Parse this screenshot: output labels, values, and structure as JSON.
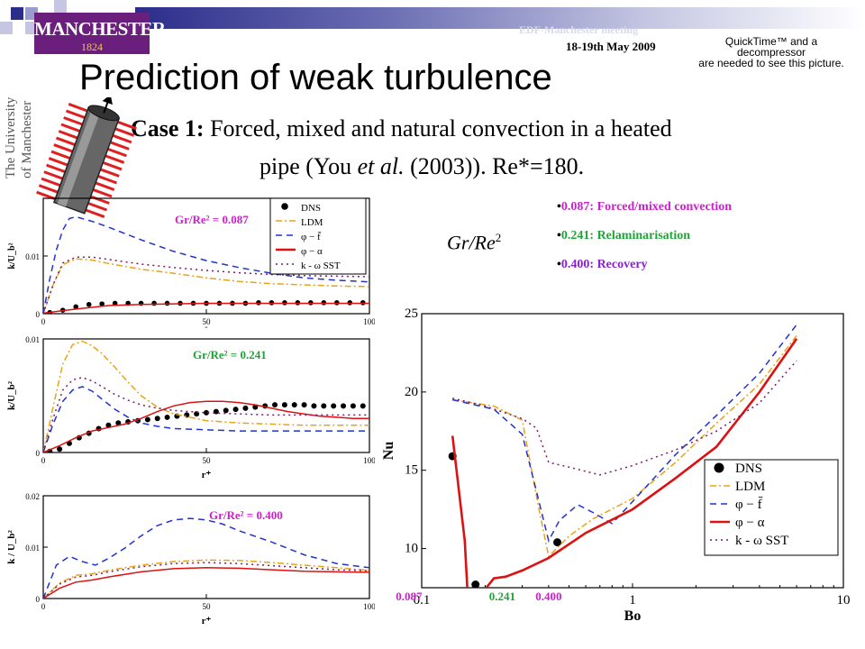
{
  "header": {
    "logo_text": "MANCHESTER",
    "logo_year": "1824",
    "meeting": "EDF-Manchester meeting",
    "date": "18-19th May 2009",
    "quicktime_lines": [
      "QuickTime™ and a",
      "decompressor",
      "are needed to see this picture."
    ],
    "vertical_logo": [
      "The University",
      "of Manchester"
    ]
  },
  "slide": {
    "title": "Prediction of weak turbulence",
    "case_label": "Case 1:",
    "case_text": "Forced, mixed and natural convection in a heated",
    "case_text2_a": "pipe (You",
    "case_text2_b": "et al.",
    "case_text2_c": "(2003)). Re*=180.",
    "formula": "Gr/Re",
    "formula_sup": "2"
  },
  "bullets": [
    {
      "text": "0.087: Forced/mixed convection",
      "color": "#cc22cc"
    },
    {
      "text": "0.241: Relaminarisation",
      "color": "#22a33a"
    },
    {
      "text": "0.400: Recovery",
      "color": "#8a22cc"
    }
  ],
  "colors": {
    "dns": "#000000",
    "ldm": "#e8a317",
    "phi_f": "#2233cc",
    "phi_alpha": "#dd1111",
    "komega": "#7a1a6a"
  },
  "chart_data": [
    {
      "type": "line",
      "panel": "top-left",
      "annotation": "Gr/Re² = 0.087",
      "annotation_color": "#cc22cc",
      "ylabel": "k/U_b²",
      "xlabel": "+",
      "xlim": [
        0,
        100
      ],
      "ylim": [
        0,
        0.02
      ],
      "xticks": [
        "0",
        "50",
        "100"
      ],
      "yticks": [
        "0",
        "0.01"
      ],
      "legend": [
        "DNS",
        "LDM",
        "φ − f̄",
        "φ − α",
        "k - ω SST"
      ],
      "series": [
        {
          "name": "DNS",
          "style": "points",
          "x": [
            2,
            6,
            10,
            14,
            18,
            22,
            26,
            30,
            34,
            38,
            42,
            46,
            50,
            54,
            58,
            62,
            66,
            70,
            74,
            78,
            82,
            86,
            90,
            94,
            98
          ],
          "y": [
            0.0002,
            0.0006,
            0.0012,
            0.0016,
            0.0017,
            0.0018,
            0.0018,
            0.0018,
            0.0018,
            0.0018,
            0.0018,
            0.0018,
            0.0018,
            0.0018,
            0.0018,
            0.0018,
            0.0019,
            0.0019,
            0.0019,
            0.0019,
            0.0019,
            0.0019,
            0.0019,
            0.0019,
            0.0019
          ]
        },
        {
          "name": "LDM",
          "x": [
            0,
            3,
            6,
            10,
            15,
            20,
            30,
            40,
            50,
            60,
            70,
            80,
            90,
            100
          ],
          "y": [
            0,
            0.005,
            0.0085,
            0.0095,
            0.0093,
            0.0087,
            0.0077,
            0.007,
            0.0062,
            0.0056,
            0.0052,
            0.005,
            0.0048,
            0.0047
          ]
        },
        {
          "name": "φ − f̄",
          "x": [
            0,
            2,
            4,
            6,
            8,
            10,
            15,
            20,
            30,
            40,
            50,
            60,
            70,
            80,
            90,
            100
          ],
          "y": [
            0,
            0.006,
            0.011,
            0.0145,
            0.0165,
            0.0168,
            0.016,
            0.015,
            0.0128,
            0.0108,
            0.0092,
            0.008,
            0.007,
            0.0062,
            0.0058,
            0.0055
          ]
        },
        {
          "name": "φ − α",
          "x": [
            0,
            10,
            20,
            30,
            40,
            50,
            60,
            70,
            80,
            90,
            100
          ],
          "y": [
            0.0001,
            0.0008,
            0.0014,
            0.0016,
            0.0017,
            0.0018,
            0.0018,
            0.0018,
            0.0018,
            0.0018,
            0.0018
          ]
        },
        {
          "name": "k - ω SST",
          "x": [
            0,
            3,
            6,
            10,
            15,
            20,
            30,
            40,
            50,
            60,
            70,
            80,
            90,
            100
          ],
          "y": [
            0,
            0.005,
            0.0088,
            0.0098,
            0.0098,
            0.0094,
            0.0086,
            0.008,
            0.0075,
            0.0071,
            0.0068,
            0.0066,
            0.0065,
            0.0064
          ]
        }
      ]
    },
    {
      "type": "line",
      "panel": "middle-left",
      "annotation": "Gr/Re² = 0.241",
      "annotation_color": "#22a33a",
      "ylabel": "k/U_b²",
      "xlabel": "r⁺",
      "xlim": [
        0,
        100
      ],
      "ylim": [
        0,
        0.01
      ],
      "xticks": [
        "0",
        "50",
        "100"
      ],
      "yticks": [
        "0",
        "0.01"
      ],
      "series": [
        {
          "name": "DNS",
          "style": "points",
          "x": [
            2,
            5,
            8,
            11,
            14,
            17,
            20,
            23,
            26,
            29,
            32,
            35,
            38,
            41,
            44,
            47,
            50,
            53,
            56,
            59,
            62,
            65,
            68,
            71,
            74,
            77,
            80,
            83,
            86,
            89,
            92,
            95,
            98
          ],
          "y": [
            0.0001,
            0.0003,
            0.0008,
            0.0013,
            0.0017,
            0.0021,
            0.0024,
            0.0026,
            0.0027,
            0.0028,
            0.0029,
            0.003,
            0.0031,
            0.0032,
            0.0033,
            0.0034,
            0.0035,
            0.0036,
            0.0037,
            0.0038,
            0.0039,
            0.004,
            0.0041,
            0.0042,
            0.0042,
            0.0042,
            0.0042,
            0.0041,
            0.0041,
            0.0041,
            0.0041,
            0.0041,
            0.0041
          ]
        },
        {
          "name": "LDM",
          "x": [
            0,
            3,
            6,
            9,
            12,
            15,
            18,
            22,
            26,
            30,
            35,
            40,
            50,
            60,
            70,
            80,
            90,
            100
          ],
          "y": [
            0,
            0.004,
            0.0078,
            0.0095,
            0.0098,
            0.0094,
            0.0087,
            0.0075,
            0.0062,
            0.005,
            0.004,
            0.0034,
            0.0028,
            0.0026,
            0.0025,
            0.0024,
            0.0024,
            0.0024
          ]
        },
        {
          "name": "φ − f̄",
          "x": [
            0,
            3,
            6,
            9,
            12,
            15,
            18,
            22,
            26,
            30,
            35,
            40,
            50,
            60,
            70,
            80,
            90,
            100
          ],
          "y": [
            0,
            0.0025,
            0.0045,
            0.0055,
            0.0058,
            0.0054,
            0.0047,
            0.0038,
            0.0031,
            0.0026,
            0.0023,
            0.0021,
            0.002,
            0.0019,
            0.0019,
            0.0019,
            0.0019,
            0.0019
          ]
        },
        {
          "name": "φ − α",
          "x": [
            0,
            5,
            10,
            15,
            20,
            25,
            30,
            35,
            40,
            45,
            50,
            55,
            60,
            65,
            70,
            75,
            80,
            85,
            90,
            95,
            100
          ],
          "y": [
            0,
            0.0006,
            0.0013,
            0.0019,
            0.0022,
            0.0025,
            0.003,
            0.0036,
            0.0041,
            0.0044,
            0.0045,
            0.0045,
            0.0044,
            0.0042,
            0.0039,
            0.0036,
            0.0034,
            0.0032,
            0.0031,
            0.003,
            0.003
          ]
        },
        {
          "name": "k - ω SST",
          "x": [
            0,
            3,
            6,
            9,
            12,
            15,
            18,
            22,
            26,
            30,
            35,
            40,
            50,
            60,
            70,
            80,
            90,
            100
          ],
          "y": [
            0,
            0.003,
            0.0055,
            0.0064,
            0.0066,
            0.0063,
            0.0058,
            0.0051,
            0.0046,
            0.0042,
            0.0039,
            0.0037,
            0.0035,
            0.0034,
            0.0033,
            0.0033,
            0.0033,
            0.0033
          ]
        }
      ]
    },
    {
      "type": "line",
      "panel": "bottom-left",
      "annotation": "Gr/Re² = 0.400",
      "annotation_color": "#cc22cc",
      "ylabel": "k / U_b²",
      "xlabel": "r⁺",
      "xlim": [
        0,
        100
      ],
      "ylim": [
        0,
        0.02
      ],
      "xticks": [
        "0",
        "50",
        "100"
      ],
      "yticks": [
        "0",
        "0.01",
        "0.02"
      ],
      "series": [
        {
          "name": "LDM",
          "x": [
            0,
            5,
            10,
            15,
            20,
            30,
            40,
            50,
            60,
            70,
            80,
            90,
            100
          ],
          "y": [
            0,
            0.003,
            0.0045,
            0.0048,
            0.0055,
            0.0065,
            0.0072,
            0.0075,
            0.0074,
            0.007,
            0.0065,
            0.006,
            0.0055
          ]
        },
        {
          "name": "φ − f̄",
          "x": [
            0,
            4,
            8,
            12,
            16,
            20,
            25,
            30,
            35,
            40,
            45,
            50,
            55,
            60,
            70,
            80,
            90,
            100
          ],
          "y": [
            0,
            0.0065,
            0.0082,
            0.0072,
            0.0065,
            0.0078,
            0.0098,
            0.0122,
            0.0142,
            0.0153,
            0.0156,
            0.0153,
            0.0145,
            0.0132,
            0.011,
            0.0085,
            0.0068,
            0.006
          ]
        },
        {
          "name": "φ − α",
          "x": [
            0,
            5,
            10,
            15,
            20,
            30,
            40,
            50,
            60,
            70,
            80,
            90,
            100
          ],
          "y": [
            0,
            0.002,
            0.0032,
            0.0036,
            0.0042,
            0.0052,
            0.0058,
            0.006,
            0.0059,
            0.0056,
            0.0053,
            0.0052,
            0.0051
          ]
        },
        {
          "name": "k - ω SST",
          "x": [
            0,
            5,
            10,
            15,
            20,
            30,
            40,
            50,
            60,
            70,
            80,
            90,
            100
          ],
          "y": [
            0,
            0.0028,
            0.0042,
            0.0045,
            0.0052,
            0.0062,
            0.0068,
            0.007,
            0.0068,
            0.0064,
            0.006,
            0.0056,
            0.0054
          ]
        }
      ]
    },
    {
      "type": "line",
      "panel": "right",
      "xlabel": "Bo",
      "ylabel": "Nu",
      "xscale": "log",
      "xlim": [
        0.1,
        10
      ],
      "ylim": [
        7.5,
        25
      ],
      "xticks": [
        "0.1",
        "1",
        "10"
      ],
      "yticks": [
        "10",
        "15",
        "20",
        "25"
      ],
      "marked_bo": [
        {
          "label": "0.087",
          "x": 0.087,
          "color": "#cc22cc"
        },
        {
          "label": "0.241",
          "x": 0.241,
          "color": "#22a33a"
        },
        {
          "label": "0.400",
          "x": 0.4,
          "color": "#cc22cc"
        }
      ],
      "legend": [
        "DNS",
        "LDM",
        "φ − f̄",
        "φ − α",
        "k - ω SST"
      ],
      "series": [
        {
          "name": "DNS",
          "style": "points",
          "x": [
            0.14,
            0.18,
            0.44
          ],
          "y": [
            15.9,
            7.7,
            10.4
          ]
        },
        {
          "name": "LDM",
          "x": [
            0.14,
            0.22,
            0.3,
            0.36,
            0.4,
            0.5,
            0.65,
            1,
            1.6,
            2.5,
            4,
            6
          ],
          "y": [
            19.5,
            19.1,
            18.2,
            12.5,
            9.5,
            10.8,
            11.9,
            13.2,
            15.5,
            18,
            20.5,
            23.6
          ]
        },
        {
          "name": "φ − f̄",
          "x": [
            0.14,
            0.22,
            0.3,
            0.36,
            0.4,
            0.45,
            0.55,
            0.65,
            0.8,
            1,
            1.6,
            2.5,
            4,
            6
          ],
          "y": [
            19.5,
            18.9,
            17.3,
            13,
            10.5,
            11.8,
            12.8,
            12.3,
            11.6,
            13,
            16,
            18.5,
            21.2,
            24.3
          ]
        },
        {
          "name": "φ − α",
          "x": [
            0.14,
            0.16,
            0.165,
            0.18,
            0.2,
            0.22,
            0.25,
            0.3,
            0.4,
            0.6,
            1,
            1.6,
            2.5,
            4,
            6
          ],
          "y": [
            17.2,
            10.5,
            7.2,
            7.1,
            7.4,
            8.1,
            8.2,
            8.6,
            9.4,
            11,
            12.5,
            14.5,
            16.5,
            20,
            23.4
          ]
        },
        {
          "name": "k - ω SST",
          "x": [
            0.14,
            0.2,
            0.3,
            0.35,
            0.4,
            0.5,
            0.7,
            1,
            1.6,
            2.5,
            4,
            6
          ],
          "y": [
            19.6,
            19.1,
            18.3,
            17.7,
            15.5,
            15.2,
            14.7,
            15.3,
            16.3,
            17.5,
            19.3,
            22
          ]
        }
      ]
    }
  ]
}
